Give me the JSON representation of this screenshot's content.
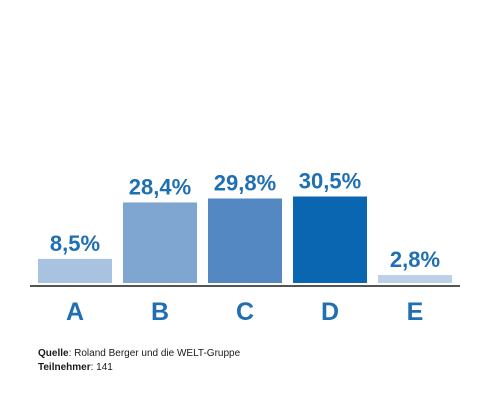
{
  "chart_data": {
    "type": "bar",
    "categories": [
      "A",
      "B",
      "C",
      "D",
      "E"
    ],
    "values": [
      8.5,
      28.4,
      29.8,
      30.5,
      2.8
    ],
    "value_labels": [
      "8,5%",
      "28,4%",
      "29,8%",
      "30,5%",
      "2,8%"
    ],
    "colors": [
      "#a8c3e0",
      "#7fa6d1",
      "#5488c3",
      "#0b66b1",
      "#bcd1e8"
    ],
    "ylim": [
      0,
      34
    ],
    "title": "",
    "xlabel": "",
    "ylabel": "",
    "grid": false,
    "legend": "none"
  },
  "footer": {
    "source_label": "Quelle",
    "source_value": ": Roland Berger und die WELT-Gruppe",
    "participants_label": "Teilnehmer",
    "participants_value": ": 141"
  }
}
